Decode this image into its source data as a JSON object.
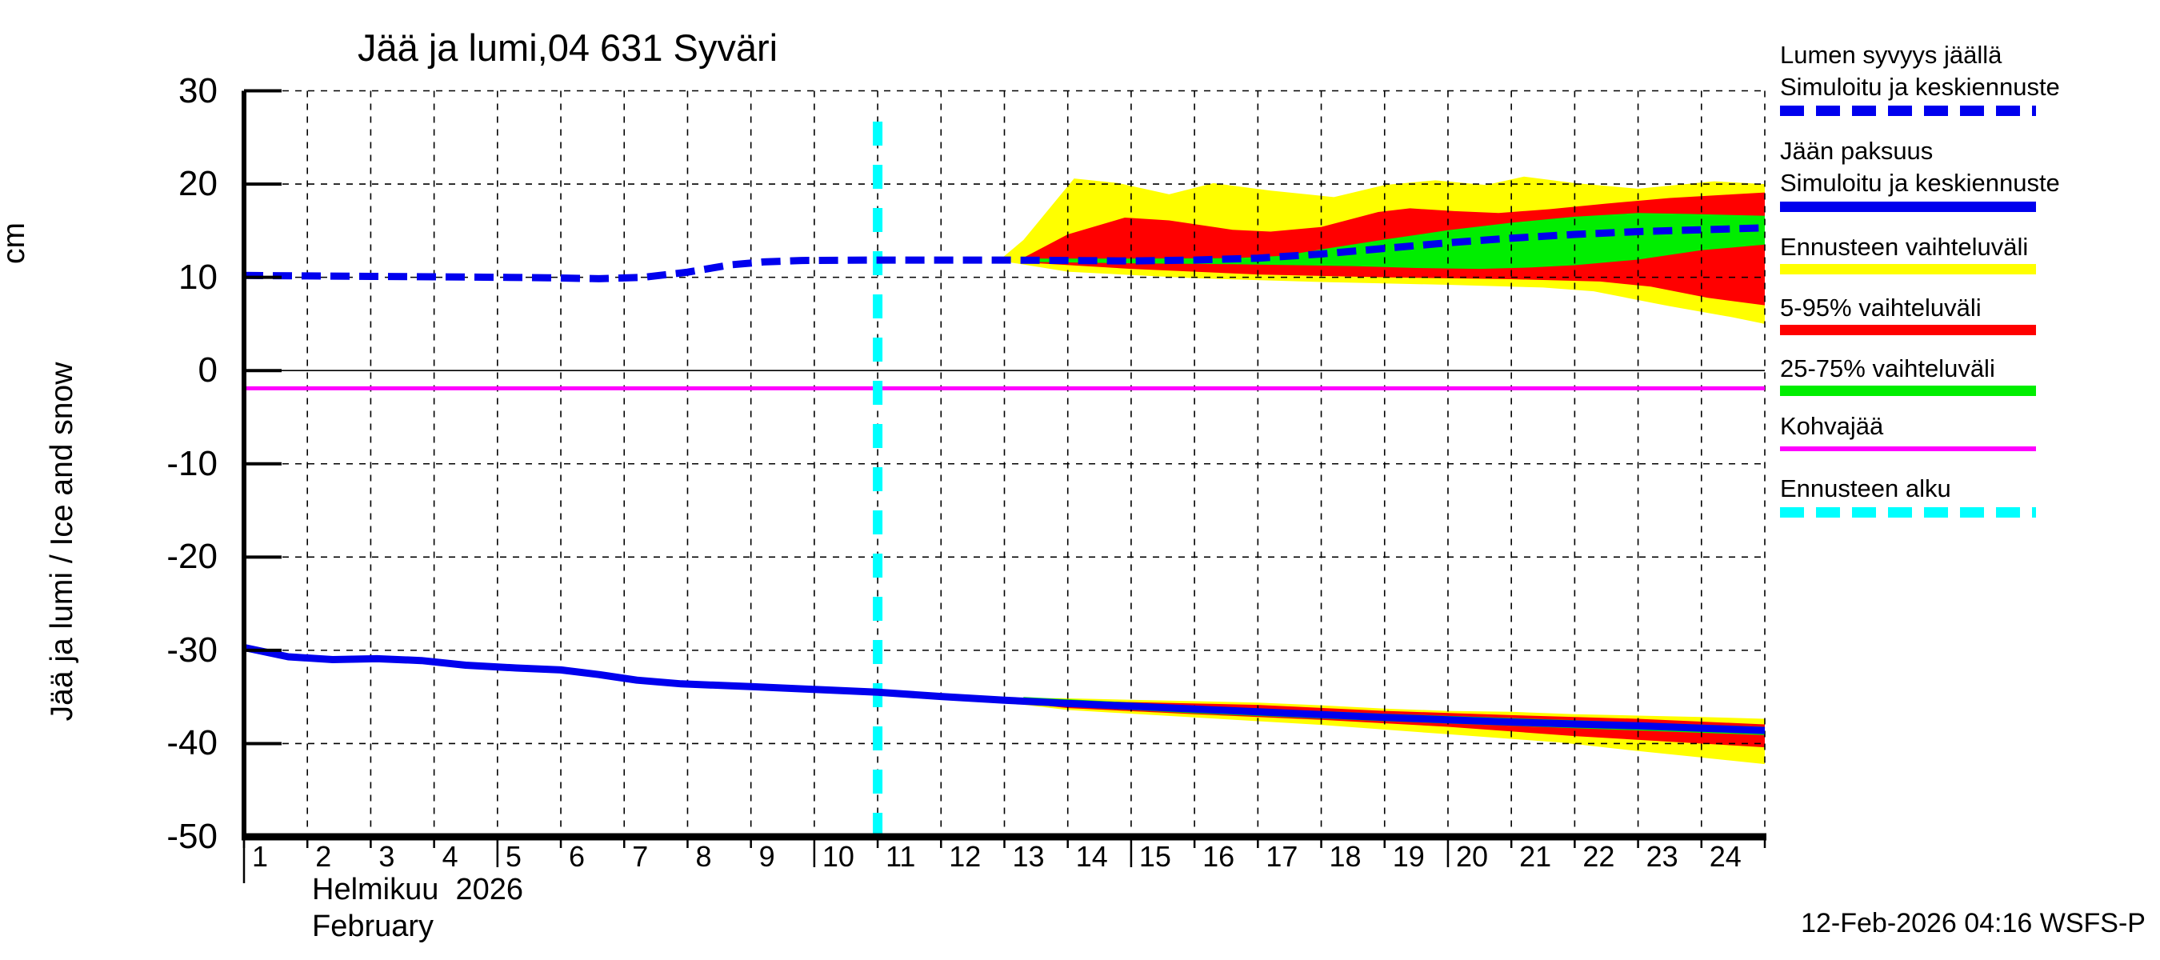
{
  "title": "Jää ja lumi,04 631 Syväri",
  "y_axis": {
    "unit": "cm",
    "axis_label": "Jää ja lumi / Ice and snow",
    "ticks": [
      30,
      20,
      10,
      0,
      -10,
      -20,
      -30,
      -40,
      -50
    ]
  },
  "x_axis": {
    "days": [
      1,
      2,
      3,
      4,
      5,
      6,
      7,
      8,
      9,
      10,
      11,
      12,
      13,
      14,
      15,
      16,
      17,
      18,
      19,
      20,
      21,
      22,
      23,
      24
    ],
    "major_tick_days": [
      5,
      10,
      15,
      20
    ],
    "month_fi": "Helmikuu  2026",
    "month_en": "February"
  },
  "footer": {
    "timestamp": "12-Feb-2026 04:16 WSFS-P"
  },
  "colors": {
    "median_blue": "#0000ee",
    "range_yellow": "#ffff00",
    "p5_95_red": "#ff0000",
    "p25_75_green": "#00ee00",
    "kohvajaa_magenta": "#ff00ff",
    "forecast_start_cyan": "#00ffff",
    "grid_black": "#000000"
  },
  "legend": {
    "items": [
      {
        "label_line1": "Lumen syvyys jäällä",
        "label_line2": "Simuloitu ja keskiennuste",
        "sample": {
          "color": "#0000ee",
          "dashed": true,
          "height": 13
        }
      },
      {
        "label_line1": "Jään paksuus",
        "label_line2": "Simuloitu ja keskiennuste",
        "sample": {
          "color": "#0000ee",
          "dashed": false,
          "height": 13
        }
      },
      {
        "label_line1": "Ennusteen vaihteluväli",
        "label_line2": "",
        "sample": {
          "color": "#ffff00",
          "dashed": false,
          "height": 13
        }
      },
      {
        "label_line1": "5-95% vaihteluväli",
        "label_line2": "",
        "sample": {
          "color": "#ff0000",
          "dashed": false,
          "height": 13
        }
      },
      {
        "label_line1": "25-75% vaihteluväli",
        "label_line2": "",
        "sample": {
          "color": "#00ee00",
          "dashed": false,
          "height": 13
        }
      },
      {
        "label_line1": "Kohvajää",
        "label_line2": "",
        "sample": {
          "color": "#ff00ff",
          "dashed": false,
          "height": 6
        }
      },
      {
        "label_line1": "Ennusteen alku",
        "label_line2": "",
        "sample": {
          "color": "#00ffff",
          "dashed": true,
          "height": 13
        }
      }
    ]
  },
  "chart_data": {
    "type": "line",
    "title": "Jää ja lumi,04 631 Syväri",
    "ylabel": "Jää ja lumi / Ice and snow (cm)",
    "xlabel": "Helmikuu 2026 / February",
    "ylim": [
      -50,
      30
    ],
    "x_range_days": [
      1,
      25
    ],
    "grid": true,
    "forecast_start_day": 11,
    "forecast_line_top_cm": 28.5,
    "kohvajaa_cm": -1.9,
    "series": [
      {
        "name": "snow_depth_on_ice_median",
        "legend": "Lumen syvyys jäällä — Simuloitu ja keskiennuste",
        "style": "dashed",
        "color": "#0000ee",
        "points": [
          [
            1,
            10.2
          ],
          [
            2,
            10.15
          ],
          [
            3,
            10.1
          ],
          [
            4,
            10.05
          ],
          [
            5,
            10.0
          ],
          [
            5.8,
            9.95
          ],
          [
            6.6,
            9.85
          ],
          [
            7.3,
            10.0
          ],
          [
            8,
            10.55
          ],
          [
            8.7,
            11.35
          ],
          [
            9.2,
            11.65
          ],
          [
            9.8,
            11.8
          ],
          [
            11,
            11.85
          ],
          [
            12,
            11.85
          ],
          [
            13,
            11.85
          ],
          [
            14,
            11.8
          ],
          [
            15,
            11.75
          ],
          [
            16,
            11.85
          ],
          [
            17,
            12.05
          ],
          [
            18,
            12.5
          ],
          [
            19,
            13.1
          ],
          [
            20,
            13.7
          ],
          [
            21,
            14.2
          ],
          [
            22,
            14.6
          ],
          [
            23,
            14.9
          ],
          [
            24,
            15.1
          ],
          [
            25,
            15.3
          ]
        ]
      },
      {
        "name": "ice_thickness_median",
        "legend": "Jään paksuus — Simuloitu ja keskiennuste",
        "style": "solid",
        "color": "#0000ee",
        "points": [
          [
            1,
            -29.7
          ],
          [
            1.7,
            -30.7
          ],
          [
            2.4,
            -31.0
          ],
          [
            3.1,
            -30.9
          ],
          [
            3.8,
            -31.1
          ],
          [
            4.5,
            -31.6
          ],
          [
            5.3,
            -31.9
          ],
          [
            6.0,
            -32.1
          ],
          [
            6.6,
            -32.6
          ],
          [
            7.2,
            -33.2
          ],
          [
            7.9,
            -33.6
          ],
          [
            9,
            -33.9
          ],
          [
            10,
            -34.2
          ],
          [
            11,
            -34.5
          ],
          [
            12,
            -34.95
          ],
          [
            13,
            -35.35
          ],
          [
            14,
            -35.7
          ],
          [
            15,
            -36.0
          ],
          [
            16,
            -36.3
          ],
          [
            17,
            -36.6
          ],
          [
            18,
            -36.9
          ],
          [
            19,
            -37.2
          ],
          [
            20,
            -37.45
          ],
          [
            21,
            -37.7
          ],
          [
            22,
            -37.9
          ],
          [
            23,
            -38.1
          ],
          [
            24,
            -38.35
          ],
          [
            25,
            -38.6
          ]
        ]
      }
    ],
    "bands": [
      {
        "name": "snow_forecast_range",
        "legend": "Ennusteen vaihteluväli",
        "color": "#ffff00",
        "top": [
          [
            12.95,
            12.0
          ],
          [
            13.3,
            14.0
          ],
          [
            14.1,
            20.6
          ],
          [
            14.8,
            20.1
          ],
          [
            15.6,
            18.9
          ],
          [
            16.3,
            20.1
          ],
          [
            17.2,
            19.3
          ],
          [
            18.2,
            18.6
          ],
          [
            19.0,
            19.9
          ],
          [
            19.8,
            20.4
          ],
          [
            20.6,
            19.9
          ],
          [
            21.2,
            20.8
          ],
          [
            22.0,
            20.1
          ],
          [
            23.0,
            19.5
          ],
          [
            24.2,
            20.3
          ],
          [
            25,
            20.0
          ]
        ],
        "bottom": [
          [
            12.95,
            11.75
          ],
          [
            14,
            10.6
          ],
          [
            16,
            9.9
          ],
          [
            18,
            9.5
          ],
          [
            20,
            9.2
          ],
          [
            21.5,
            8.9
          ],
          [
            22.3,
            8.5
          ],
          [
            23.5,
            6.9
          ],
          [
            24.5,
            5.7
          ],
          [
            25,
            5.0
          ]
        ]
      },
      {
        "name": "snow_5_95",
        "legend": "5-95% vaihteluväli",
        "color": "#ff0000",
        "top": [
          [
            13.3,
            12.1
          ],
          [
            14.0,
            14.6
          ],
          [
            14.9,
            16.4
          ],
          [
            15.6,
            16.1
          ],
          [
            16.6,
            15.1
          ],
          [
            17.2,
            14.9
          ],
          [
            18.0,
            15.4
          ],
          [
            18.9,
            17.0
          ],
          [
            19.4,
            17.4
          ],
          [
            20.1,
            17.1
          ],
          [
            20.8,
            16.9
          ],
          [
            21.6,
            17.3
          ],
          [
            22.5,
            17.9
          ],
          [
            23.5,
            18.5
          ],
          [
            24.5,
            18.9
          ],
          [
            25,
            19.1
          ]
        ],
        "bottom": [
          [
            13.3,
            11.6
          ],
          [
            15,
            10.9
          ],
          [
            17,
            10.3
          ],
          [
            19,
            10.0
          ],
          [
            21,
            9.8
          ],
          [
            22.4,
            9.55
          ],
          [
            23.2,
            9.0
          ],
          [
            24.1,
            7.8
          ],
          [
            25,
            7.0
          ]
        ]
      },
      {
        "name": "snow_25_75",
        "legend": "25-75% vaihteluväli",
        "color": "#00ee00",
        "top": [
          [
            13.4,
            12.0
          ],
          [
            15,
            12.0
          ],
          [
            16.6,
            12.05
          ],
          [
            17.4,
            12.3
          ],
          [
            18,
            13.0
          ],
          [
            19,
            14.05
          ],
          [
            20,
            15.05
          ],
          [
            21,
            15.85
          ],
          [
            22,
            16.5
          ],
          [
            23,
            16.9
          ],
          [
            23.8,
            16.8
          ],
          [
            25,
            16.6
          ]
        ],
        "bottom": [
          [
            13.4,
            11.65
          ],
          [
            15,
            11.5
          ],
          [
            16.6,
            11.4
          ],
          [
            17.6,
            11.3
          ],
          [
            18.5,
            11.2
          ],
          [
            19.5,
            11.0
          ],
          [
            20.5,
            10.9
          ],
          [
            21.3,
            11.05
          ],
          [
            22,
            11.3
          ],
          [
            23,
            11.9
          ],
          [
            24,
            12.9
          ],
          [
            25,
            13.5
          ]
        ]
      },
      {
        "name": "ice_forecast_range",
        "legend": "Ennusteen vaihteluväli",
        "color": "#ffff00",
        "top": [
          [
            12.9,
            -35.1
          ],
          [
            14,
            -35.15
          ],
          [
            15,
            -35.3
          ],
          [
            16,
            -35.45
          ],
          [
            17,
            -35.6
          ],
          [
            18,
            -35.9
          ],
          [
            19,
            -36.25
          ],
          [
            20,
            -36.5
          ],
          [
            21,
            -36.6
          ],
          [
            22,
            -36.85
          ],
          [
            23,
            -37.0
          ],
          [
            24,
            -37.15
          ],
          [
            25,
            -37.35
          ]
        ],
        "bottom": [
          [
            12.9,
            -35.5
          ],
          [
            14,
            -36.4
          ],
          [
            16,
            -37.2
          ],
          [
            18,
            -38.0
          ],
          [
            20,
            -39.0
          ],
          [
            21.8,
            -39.9
          ],
          [
            23,
            -40.8
          ],
          [
            24,
            -41.5
          ],
          [
            25,
            -42.2
          ]
        ]
      },
      {
        "name": "ice_5_95",
        "legend": "5-95% vaihteluväli",
        "color": "#ff0000",
        "top": [
          [
            13.2,
            -35.2
          ],
          [
            15,
            -35.55
          ],
          [
            17,
            -35.85
          ],
          [
            19,
            -36.5
          ],
          [
            21,
            -36.95
          ],
          [
            23,
            -37.35
          ],
          [
            25,
            -37.95
          ]
        ],
        "bottom": [
          [
            13.2,
            -35.6
          ],
          [
            14,
            -36.2
          ],
          [
            16,
            -36.85
          ],
          [
            18,
            -37.45
          ],
          [
            20,
            -38.2
          ],
          [
            22,
            -39.2
          ],
          [
            23.5,
            -39.8
          ],
          [
            25,
            -40.4
          ]
        ]
      },
      {
        "name": "ice_25_75",
        "legend": "25-75% vaihteluväli",
        "color": "#00ee00",
        "top": [
          [
            13.3,
            -35.0
          ],
          [
            16,
            -35.95
          ],
          [
            19,
            -36.8
          ],
          [
            22,
            -37.5
          ],
          [
            25,
            -38.2
          ]
        ],
        "bottom": [
          [
            13.3,
            -35.8
          ],
          [
            16,
            -36.75
          ],
          [
            19,
            -37.6
          ],
          [
            22,
            -38.35
          ],
          [
            25,
            -39.1
          ]
        ]
      }
    ]
  }
}
